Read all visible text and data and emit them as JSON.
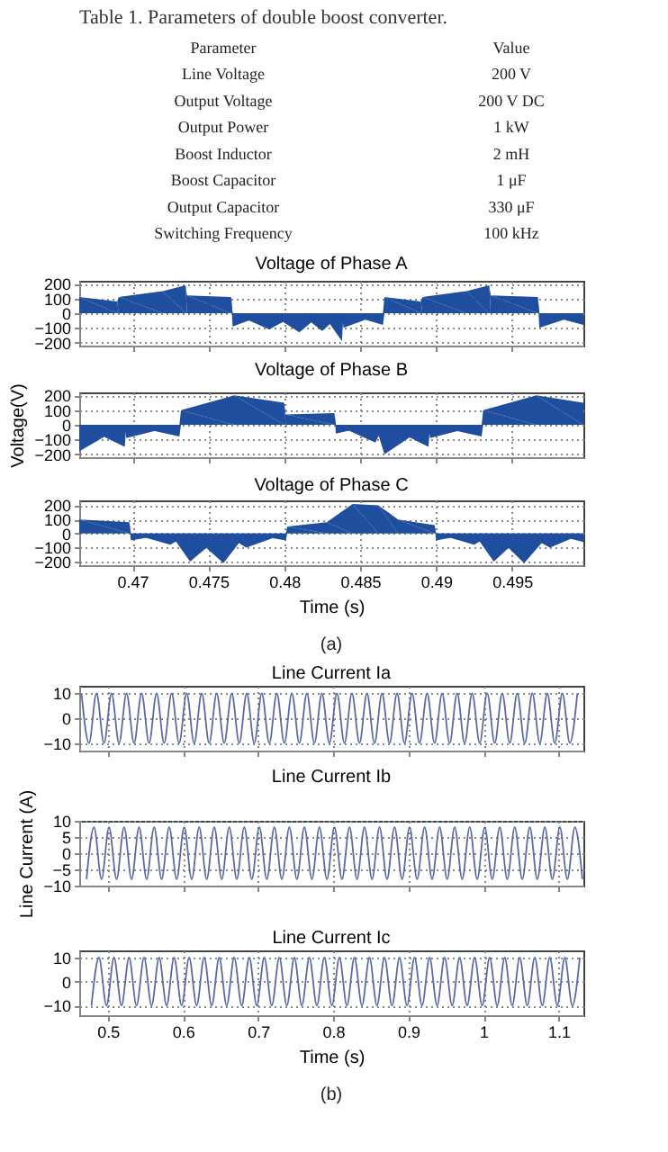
{
  "chart_data": [
    {
      "type": "other",
      "title": "Table 1. Parameters of double boost converter.",
      "annotations": [
        "Parameter",
        "Value",
        "Line Voltage",
        "200 V",
        "Output Voltage",
        "200 V DC",
        "Output Power",
        "1 kW",
        "Boost Inductor",
        "2 mH",
        "Boost Capacitor",
        "1 μF",
        "Output Capacitor",
        "330 μF",
        "Switching Frequency",
        "100 kHz"
      ]
    },
    {
      "type": "area",
      "title": "Voltage of Phase A",
      "xlim": [
        0.4665,
        0.4997
      ],
      "xticks": [
        0.47,
        0.475,
        0.48,
        0.485,
        0.49,
        0.495
      ],
      "ylim": [
        -220,
        220
      ],
      "yticks": [
        -200,
        -100,
        0,
        100,
        200
      ],
      "grid": true,
      "tick_labels": "y",
      "x": [
        0.4665,
        0.469,
        0.4691,
        0.472,
        0.4735,
        0.4736,
        0.4765,
        0.4766,
        0.479,
        0.481,
        0.4825,
        0.4838,
        0.4839,
        0.4865,
        0.4866,
        0.489,
        0.4891,
        0.492,
        0.4935,
        0.4936,
        0.4967,
        0.4968,
        0.4997
      ],
      "series": [
        {
          "color": "#1f4e9e",
          "values": [
            110,
            80,
            110,
            150,
            190,
            120,
            110,
            -90,
            -110,
            -130,
            -120,
            -190,
            -100,
            -80,
            110,
            80,
            110,
            150,
            190,
            120,
            110,
            -100,
            -80
          ]
        }
      ]
    },
    {
      "type": "area",
      "title": "Voltage of Phase B",
      "ylabel": "Voltage(V)",
      "xlim": [
        0.4665,
        0.4997
      ],
      "xticks": [
        0.47,
        0.475,
        0.48,
        0.485,
        0.49,
        0.495
      ],
      "ylim": [
        -220,
        220
      ],
      "yticks": [
        -200,
        -100,
        0,
        100,
        200
      ],
      "grid": true,
      "tick_labels": "y",
      "x": [
        0.4665,
        0.4695,
        0.4696,
        0.4731,
        0.4732,
        0.4767,
        0.48,
        0.4801,
        0.4833,
        0.4834,
        0.486,
        0.4866,
        0.4895,
        0.4896,
        0.493,
        0.4931,
        0.4966,
        0.4997
      ],
      "series": [
        {
          "color": "#1f4e9e",
          "values": [
            -180,
            -150,
            -90,
            -80,
            100,
            200,
            150,
            70,
            80,
            -60,
            -120,
            -200,
            -150,
            -90,
            -80,
            100,
            200,
            150
          ]
        }
      ]
    },
    {
      "type": "area",
      "title": "Voltage of Phase C",
      "xlabel": "Time (s)",
      "annotations": [
        "(a)"
      ],
      "xlim": [
        0.4665,
        0.4997
      ],
      "xticks": [
        0.47,
        0.475,
        0.48,
        0.485,
        0.49,
        0.495
      ],
      "ylim": [
        -225,
        235
      ],
      "yticks": [
        -200,
        -100,
        0,
        100,
        200
      ],
      "grid": true,
      "x": [
        0.4665,
        0.4698,
        0.4699,
        0.4725,
        0.4738,
        0.476,
        0.4775,
        0.4801,
        0.4802,
        0.4828,
        0.4845,
        0.4862,
        0.4875,
        0.4899,
        0.49,
        0.4925,
        0.4938,
        0.4958,
        0.4975,
        0.4997
      ],
      "series": [
        {
          "color": "#1f4e9e",
          "values": [
            100,
            80,
            -50,
            -80,
            -200,
            -210,
            -100,
            -50,
            50,
            80,
            210,
            200,
            100,
            60,
            -50,
            -80,
            -200,
            -210,
            -100,
            -60
          ]
        }
      ]
    },
    {
      "type": "line",
      "title": "Line Current Ia",
      "xlim": [
        0.462,
        1.133
      ],
      "xticks": [
        0.5,
        0.6,
        0.7,
        0.8,
        0.9,
        1,
        1.1
      ],
      "ylim": [
        -13,
        13
      ],
      "yticks": [
        -10,
        0,
        10
      ],
      "grid": true,
      "tick_labels": "y",
      "x": [
        0.465,
        0.475,
        0.485,
        0.495,
        0.505,
        0.515,
        0.525,
        0.535,
        0.545,
        0.555,
        0.565,
        0.575,
        0.585,
        0.595,
        0.605,
        0.615,
        0.625,
        0.635,
        0.645,
        0.655,
        0.665,
        0.675,
        0.685,
        0.695,
        0.705,
        0.715,
        0.725,
        0.735,
        0.745,
        0.755,
        0.765,
        0.775,
        0.785,
        0.795,
        0.805,
        0.815,
        0.825,
        0.835,
        0.845,
        0.855,
        0.865,
        0.875,
        0.885,
        0.895,
        0.905,
        0.915,
        0.925,
        0.935,
        0.945,
        0.955,
        0.965,
        0.975,
        0.985,
        0.995,
        1.005,
        1.015,
        1.025,
        1.035,
        1.045,
        1.055,
        1.065,
        1.075,
        1.085,
        1.095,
        1.105,
        1.115,
        1.125
      ],
      "series": [
        {
          "color": "#5a6aa8",
          "values": [
            10,
            -10,
            10,
            -10,
            10,
            -10,
            10,
            -10,
            10,
            -10,
            10,
            -10,
            10,
            -10,
            10,
            -10,
            10,
            -10,
            10,
            -10,
            10,
            -10,
            10,
            -10,
            10,
            -10,
            10,
            -10,
            10,
            -10,
            10,
            -10,
            10,
            -10,
            10,
            -10,
            10,
            -10,
            10,
            -10,
            10,
            -10,
            10,
            -10,
            10,
            -10,
            10,
            -10,
            10,
            -10,
            10,
            -10,
            10,
            -10,
            10,
            -10,
            10,
            -10,
            10,
            -10,
            10,
            -10,
            10,
            -10,
            10,
            -10,
            10
          ]
        }
      ]
    },
    {
      "type": "line",
      "title": "Line Current Ib",
      "ylabel": "Line Current (A)",
      "xlim": [
        0.462,
        1.133
      ],
      "xticks": [
        0.5,
        0.6,
        0.7,
        0.8,
        0.9,
        1,
        1.1
      ],
      "ylim": [
        -10,
        10
      ],
      "yticks": [
        -10,
        -5,
        0,
        5,
        10
      ],
      "grid": true,
      "tick_labels": "y",
      "x": [
        0.4717,
        0.4817,
        0.4917,
        0.5017,
        0.5117,
        0.5217,
        0.5317,
        0.5417,
        0.5517,
        0.5617,
        0.5717,
        0.5817,
        0.5917,
        0.6017,
        0.6117,
        0.6217,
        0.6317,
        0.6417,
        0.6517,
        0.6617,
        0.6717,
        0.6817,
        0.6917,
        0.7017,
        0.7117,
        0.7217,
        0.7317,
        0.7417,
        0.7517,
        0.7617,
        0.7717,
        0.7817,
        0.7917,
        0.8017,
        0.8117,
        0.8217,
        0.8317,
        0.8417,
        0.8517,
        0.8617,
        0.8717,
        0.8817,
        0.8917,
        0.9017,
        0.9117,
        0.9217,
        0.9317,
        0.9417,
        0.9517,
        0.9617,
        0.9717,
        0.9817,
        0.9917,
        1.0017,
        1.0117,
        1.0217,
        1.0317,
        1.0417,
        1.0517,
        1.0617,
        1.0717,
        1.0817,
        1.0917,
        1.1017,
        1.1117,
        1.1217,
        1.1317
      ],
      "series": [
        {
          "color": "#5a6aa8",
          "values": [
            -8,
            8,
            -8,
            8,
            -8,
            8,
            -8,
            8,
            -8,
            8,
            -8,
            8,
            -8,
            8,
            -8,
            8,
            -8,
            8,
            -8,
            8,
            -8,
            8,
            -8,
            8,
            -8,
            8,
            -8,
            8,
            -8,
            8,
            -8,
            8,
            -8,
            8,
            -8,
            8,
            -8,
            8,
            -8,
            8,
            -8,
            8,
            -8,
            8,
            -8,
            8,
            -8,
            8,
            -8,
            8,
            -8,
            8,
            -8,
            8,
            -8,
            8,
            -8,
            8,
            -8,
            8,
            -8,
            8,
            -8,
            8,
            -8,
            8,
            -8
          ]
        }
      ]
    },
    {
      "type": "line",
      "title": "Line Current Ic",
      "xlabel": "Time (s)",
      "annotations": [
        "(b)"
      ],
      "xlim": [
        0.462,
        1.133
      ],
      "xticks": [
        0.5,
        0.6,
        0.7,
        0.8,
        0.9,
        1,
        1.1
      ],
      "ylim": [
        -14,
        13
      ],
      "yticks": [
        -10,
        0,
        10
      ],
      "grid": true,
      "x": [
        0.4783,
        0.4883,
        0.4983,
        0.5083,
        0.5183,
        0.5283,
        0.5383,
        0.5483,
        0.5583,
        0.5683,
        0.5783,
        0.5883,
        0.5983,
        0.6083,
        0.6183,
        0.6283,
        0.6383,
        0.6483,
        0.6583,
        0.6683,
        0.6783,
        0.6883,
        0.6983,
        0.7083,
        0.7183,
        0.7283,
        0.7383,
        0.7483,
        0.7583,
        0.7683,
        0.7783,
        0.7883,
        0.7983,
        0.8083,
        0.8183,
        0.8283,
        0.8383,
        0.8483,
        0.8583,
        0.8683,
        0.8783,
        0.8883,
        0.8983,
        0.9083,
        0.9183,
        0.9283,
        0.9383,
        0.9483,
        0.9583,
        0.9683,
        0.9783,
        0.9883,
        0.9983,
        1.0083,
        1.0183,
        1.0283,
        1.0383,
        1.0483,
        1.0583,
        1.0683,
        1.0783,
        1.0883,
        1.0983,
        1.1083,
        1.1183,
        1.1283
      ],
      "series": [
        {
          "color": "#5a6aa8",
          "values": [
            -10,
            10,
            -10,
            10,
            -10,
            10,
            -10,
            10,
            -10,
            10,
            -10,
            10,
            -10,
            10,
            -10,
            10,
            -10,
            10,
            -10,
            10,
            -10,
            10,
            -10,
            10,
            -10,
            10,
            -10,
            10,
            -10,
            10,
            -10,
            10,
            -10,
            10,
            -10,
            10,
            -10,
            10,
            -10,
            10,
            -10,
            10,
            -10,
            10,
            -10,
            10,
            -10,
            10,
            -10,
            10,
            -10,
            10,
            -10,
            10,
            -10,
            10,
            -10,
            10,
            -10,
            10,
            -10,
            10,
            -10,
            10,
            -10,
            10
          ]
        }
      ]
    }
  ]
}
